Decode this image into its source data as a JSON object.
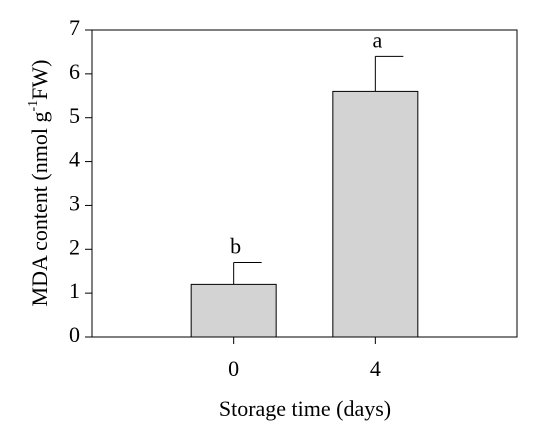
{
  "chart_data": {
    "type": "bar",
    "ylabel": {
      "text": "MDA content (nmol g",
      "sup": "-1",
      "after": "FW)"
    },
    "xlabel": "Storage time (days)",
    "categories": [
      "0",
      "4"
    ],
    "values": [
      1.2,
      5.6
    ],
    "errors": [
      0.5,
      0.8
    ],
    "annotations": [
      "b",
      "a"
    ],
    "color": "#d3d3d3",
    "ylim": [
      0,
      7
    ],
    "yticks": [
      0,
      1,
      2,
      3,
      4,
      5,
      6,
      7
    ]
  }
}
